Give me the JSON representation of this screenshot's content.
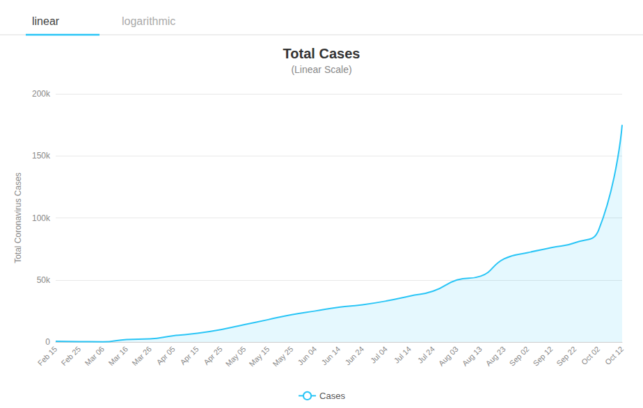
{
  "chart_data": {
    "type": "line",
    "title": "Total Cases",
    "subtitle": "(Linear Scale)",
    "ylabel": "Total Coronavirus Cases",
    "annotations": [
      "linear",
      "logarithmic"
    ],
    "categories": [
      "Feb 15",
      "Feb 25",
      "Mar 06",
      "Mar 16",
      "Mar 26",
      "Apr 05",
      "Apr 15",
      "Apr 25",
      "May 05",
      "May 15",
      "May 25",
      "Jun 04",
      "Jun 14",
      "Jun 24",
      "Jul 04",
      "Jul 14",
      "Jul 24",
      "Aug 03",
      "Aug 13",
      "Aug 23",
      "Sep 02",
      "Sep 12",
      "Sep 22",
      "Oct 02",
      "Oct 12"
    ],
    "series": [
      {
        "name": "Cases",
        "color": "#29c5f6",
        "values": [
          500,
          300,
          150,
          2000,
          2500,
          5000,
          7000,
          10000,
          14000,
          18000,
          22000,
          25000,
          28000,
          30000,
          33000,
          37000,
          41000,
          50000,
          53000,
          67000,
          72000,
          76000,
          80000,
          90000,
          175000
        ]
      }
    ],
    "ylim": [
      0,
      200000
    ],
    "yticks": [
      0,
      {
        "value": 50000,
        "label": "50k"
      },
      {
        "value": 100000,
        "label": "100k"
      },
      {
        "value": 150000,
        "label": "150k"
      },
      {
        "value": 200000,
        "label": "200k"
      }
    ],
    "grid": true,
    "legend": "bottom"
  }
}
